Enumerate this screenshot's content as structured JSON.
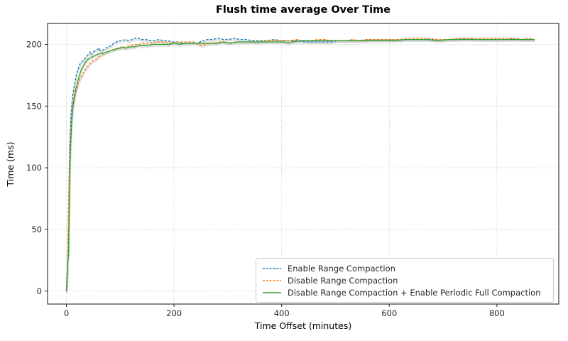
{
  "figure": {
    "title": "Flush time average Over Time"
  },
  "chart_data": {
    "type": "line",
    "title": "Flush time average Over Time",
    "xlabel": "Time Offset (minutes)",
    "ylabel": "Time (ms)",
    "xlim": [
      -35,
      915
    ],
    "ylim": [
      -10.5,
      217
    ],
    "x_ticks": [
      0,
      200,
      400,
      600,
      800
    ],
    "y_ticks": [
      0,
      50,
      100,
      150,
      200
    ],
    "grid": "dotted",
    "legend_position": "lower right",
    "axis_color": "#262626",
    "grid_color": "#b0b0b0",
    "shadow_color": "#c9c9c9",
    "series": [
      {
        "label": "Enable Range Compaction",
        "color": "#1f77b4",
        "style": "dashed",
        "points": [
          [
            0,
            0
          ],
          [
            1,
            14
          ],
          [
            2,
            15
          ],
          [
            3,
            38
          ],
          [
            4,
            66
          ],
          [
            5,
            92
          ],
          [
            6,
            115
          ],
          [
            7,
            128
          ],
          [
            8,
            139
          ],
          [
            10,
            151
          ],
          [
            12,
            159
          ],
          [
            15,
            168
          ],
          [
            18,
            174
          ],
          [
            21,
            179
          ],
          [
            25,
            184
          ],
          [
            29,
            186
          ],
          [
            33,
            188
          ],
          [
            37,
            190
          ],
          [
            41,
            192
          ],
          [
            44,
            194
          ],
          [
            46,
            192
          ],
          [
            50,
            194
          ],
          [
            54,
            195
          ],
          [
            58,
            196
          ],
          [
            61,
            197
          ],
          [
            63,
            195
          ],
          [
            66,
            195
          ],
          [
            70,
            196
          ],
          [
            74,
            197
          ],
          [
            78,
            198
          ],
          [
            83,
            199
          ],
          [
            88,
            201
          ],
          [
            93,
            202
          ],
          [
            98,
            203
          ],
          [
            104,
            203
          ],
          [
            110,
            204
          ],
          [
            116,
            203
          ],
          [
            122,
            204
          ],
          [
            128,
            205
          ],
          [
            134,
            205
          ],
          [
            140,
            204
          ],
          [
            148,
            204
          ],
          [
            156,
            203
          ],
          [
            164,
            203
          ],
          [
            172,
            204
          ],
          [
            180,
            203
          ],
          [
            188,
            203
          ],
          [
            196,
            202
          ],
          [
            205,
            202
          ],
          [
            214,
            201
          ],
          [
            224,
            201
          ],
          [
            234,
            201
          ],
          [
            244,
            201
          ],
          [
            252,
            203
          ],
          [
            262,
            204
          ],
          [
            272,
            204
          ],
          [
            282,
            205
          ],
          [
            292,
            204
          ],
          [
            302,
            204
          ],
          [
            312,
            205
          ],
          [
            322,
            204
          ],
          [
            334,
            204
          ],
          [
            346,
            203
          ],
          [
            358,
            203
          ],
          [
            372,
            203
          ],
          [
            386,
            204
          ],
          [
            400,
            203
          ],
          [
            415,
            203
          ],
          [
            430,
            203
          ],
          [
            445,
            202
          ],
          [
            460,
            202
          ],
          [
            475,
            202
          ],
          [
            490,
            202
          ],
          [
            505,
            203
          ],
          [
            520,
            203
          ],
          [
            540,
            203
          ],
          [
            560,
            204
          ],
          [
            580,
            204
          ],
          [
            600,
            204
          ],
          [
            625,
            204
          ],
          [
            650,
            204
          ],
          [
            675,
            204
          ],
          [
            700,
            204
          ],
          [
            725,
            204
          ],
          [
            745,
            205
          ],
          [
            760,
            204
          ],
          [
            780,
            204
          ],
          [
            800,
            204
          ],
          [
            820,
            204
          ],
          [
            835,
            205
          ],
          [
            845,
            204
          ],
          [
            860,
            204
          ],
          [
            870,
            204
          ]
        ]
      },
      {
        "label": "Disable Range Compaction",
        "color": "#ff7f0e",
        "style": "dashed",
        "points": [
          [
            0,
            0
          ],
          [
            1,
            8
          ],
          [
            2,
            20
          ],
          [
            3,
            40
          ],
          [
            4,
            70
          ],
          [
            5,
            88
          ],
          [
            6,
            103
          ],
          [
            7,
            118
          ],
          [
            8,
            128
          ],
          [
            10,
            140
          ],
          [
            12,
            148
          ],
          [
            15,
            156
          ],
          [
            18,
            162
          ],
          [
            21,
            167
          ],
          [
            25,
            172
          ],
          [
            29,
            175
          ],
          [
            33,
            178
          ],
          [
            37,
            181
          ],
          [
            41,
            183
          ],
          [
            45,
            185
          ],
          [
            50,
            187
          ],
          [
            55,
            188
          ],
          [
            60,
            190
          ],
          [
            65,
            191
          ],
          [
            70,
            193
          ],
          [
            76,
            194
          ],
          [
            82,
            195
          ],
          [
            88,
            196
          ],
          [
            95,
            197
          ],
          [
            102,
            197
          ],
          [
            110,
            198
          ],
          [
            118,
            199
          ],
          [
            126,
            200
          ],
          [
            134,
            200
          ],
          [
            142,
            201
          ],
          [
            150,
            201
          ],
          [
            158,
            201
          ],
          [
            166,
            202
          ],
          [
            174,
            202
          ],
          [
            182,
            202
          ],
          [
            190,
            201
          ],
          [
            198,
            201
          ],
          [
            207,
            202
          ],
          [
            216,
            202
          ],
          [
            226,
            202
          ],
          [
            236,
            202
          ],
          [
            246,
            200
          ],
          [
            252,
            199
          ],
          [
            258,
            200
          ],
          [
            266,
            201
          ],
          [
            274,
            201
          ],
          [
            282,
            202
          ],
          [
            292,
            202
          ],
          [
            302,
            201
          ],
          [
            312,
            202
          ],
          [
            325,
            202
          ],
          [
            340,
            202
          ],
          [
            355,
            202
          ],
          [
            370,
            203
          ],
          [
            385,
            203
          ],
          [
            400,
            203
          ],
          [
            415,
            203
          ],
          [
            428,
            204
          ],
          [
            440,
            203
          ],
          [
            455,
            203
          ],
          [
            468,
            204
          ],
          [
            480,
            204
          ],
          [
            492,
            203
          ],
          [
            505,
            203
          ],
          [
            520,
            203
          ],
          [
            532,
            204
          ],
          [
            545,
            203
          ],
          [
            560,
            204
          ],
          [
            580,
            204
          ],
          [
            600,
            204
          ],
          [
            620,
            204
          ],
          [
            638,
            205
          ],
          [
            655,
            205
          ],
          [
            672,
            205
          ],
          [
            690,
            204
          ],
          [
            710,
            204
          ],
          [
            730,
            205
          ],
          [
            750,
            205
          ],
          [
            770,
            205
          ],
          [
            790,
            205
          ],
          [
            810,
            205
          ],
          [
            830,
            205
          ],
          [
            845,
            204
          ],
          [
            858,
            205
          ],
          [
            870,
            204
          ]
        ]
      },
      {
        "label": "Disable Range Compaction + Enable Periodic Full Compaction",
        "color": "#2ca02c",
        "style": "solid",
        "points": [
          [
            0,
            0
          ],
          [
            1,
            5
          ],
          [
            2,
            18
          ],
          [
            3,
            26
          ],
          [
            4,
            30
          ],
          [
            5,
            58
          ],
          [
            6,
            88
          ],
          [
            7,
            108
          ],
          [
            8,
            120
          ],
          [
            10,
            139
          ],
          [
            12,
            150
          ],
          [
            15,
            159
          ],
          [
            18,
            165
          ],
          [
            21,
            170
          ],
          [
            25,
            176
          ],
          [
            28,
            180
          ],
          [
            32,
            183
          ],
          [
            36,
            186
          ],
          [
            40,
            188
          ],
          [
            44,
            189
          ],
          [
            48,
            190
          ],
          [
            53,
            191
          ],
          [
            58,
            192
          ],
          [
            64,
            193
          ],
          [
            70,
            193
          ],
          [
            76,
            194
          ],
          [
            82,
            195
          ],
          [
            90,
            196
          ],
          [
            98,
            197
          ],
          [
            104,
            198
          ],
          [
            110,
            197
          ],
          [
            118,
            198
          ],
          [
            126,
            198
          ],
          [
            134,
            199
          ],
          [
            142,
            199
          ],
          [
            150,
            199
          ],
          [
            160,
            200
          ],
          [
            170,
            200
          ],
          [
            180,
            200
          ],
          [
            190,
            200
          ],
          [
            200,
            201
          ],
          [
            210,
            200
          ],
          [
            220,
            201
          ],
          [
            232,
            201
          ],
          [
            244,
            201
          ],
          [
            256,
            201
          ],
          [
            268,
            201
          ],
          [
            280,
            201
          ],
          [
            292,
            202
          ],
          [
            304,
            201
          ],
          [
            318,
            202
          ],
          [
            332,
            202
          ],
          [
            346,
            202
          ],
          [
            360,
            202
          ],
          [
            375,
            202
          ],
          [
            390,
            202
          ],
          [
            405,
            202
          ],
          [
            412,
            201
          ],
          [
            420,
            202
          ],
          [
            435,
            203
          ],
          [
            450,
            203
          ],
          [
            465,
            203
          ],
          [
            480,
            203
          ],
          [
            495,
            203
          ],
          [
            510,
            203
          ],
          [
            530,
            203
          ],
          [
            550,
            203
          ],
          [
            570,
            203
          ],
          [
            590,
            203
          ],
          [
            610,
            203
          ],
          [
            630,
            204
          ],
          [
            650,
            204
          ],
          [
            670,
            204
          ],
          [
            690,
            203
          ],
          [
            710,
            204
          ],
          [
            730,
            204
          ],
          [
            750,
            204
          ],
          [
            770,
            204
          ],
          [
            790,
            204
          ],
          [
            810,
            204
          ],
          [
            830,
            204
          ],
          [
            850,
            204
          ],
          [
            870,
            204
          ]
        ]
      }
    ]
  }
}
